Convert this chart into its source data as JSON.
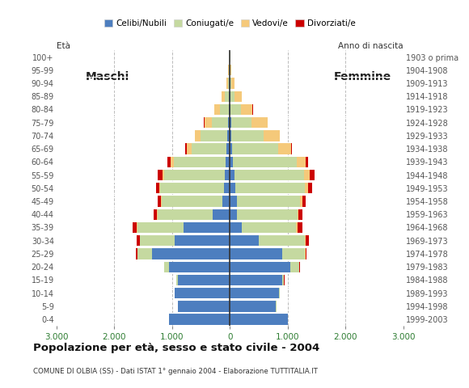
{
  "age_groups": [
    "0-4",
    "5-9",
    "10-14",
    "15-19",
    "20-24",
    "25-29",
    "30-34",
    "35-39",
    "40-44",
    "45-49",
    "50-54",
    "55-59",
    "60-64",
    "65-69",
    "70-74",
    "75-79",
    "80-84",
    "85-89",
    "90-94",
    "95-99",
    "100+"
  ],
  "birth_years": [
    "1999-2003",
    "1994-1998",
    "1989-1993",
    "1984-1988",
    "1979-1983",
    "1974-1978",
    "1969-1973",
    "1964-1968",
    "1959-1963",
    "1954-1958",
    "1949-1953",
    "1944-1948",
    "1939-1943",
    "1934-1938",
    "1929-1933",
    "1924-1928",
    "1919-1923",
    "1914-1918",
    "1909-1913",
    "1904-1908",
    "1903 o prima"
  ],
  "male": {
    "celibe": [
      1050,
      900,
      950,
      900,
      1050,
      1350,
      950,
      800,
      300,
      130,
      100,
      90,
      70,
      60,
      50,
      30,
      20,
      10,
      5,
      2,
      0
    ],
    "coniugato": [
      2,
      2,
      5,
      20,
      80,
      250,
      600,
      800,
      950,
      1050,
      1100,
      1050,
      900,
      600,
      450,
      280,
      150,
      80,
      30,
      15,
      5
    ],
    "vedovo": [
      0,
      0,
      0,
      0,
      0,
      2,
      2,
      5,
      5,
      10,
      20,
      30,
      50,
      80,
      100,
      130,
      100,
      50,
      20,
      8,
      2
    ],
    "divorziato": [
      0,
      0,
      0,
      2,
      5,
      20,
      60,
      80,
      60,
      50,
      60,
      80,
      60,
      30,
      10,
      5,
      3,
      2,
      0,
      0,
      0
    ]
  },
  "female": {
    "nubile": [
      1000,
      800,
      850,
      900,
      1050,
      900,
      500,
      200,
      120,
      120,
      100,
      80,
      60,
      40,
      30,
      20,
      15,
      10,
      5,
      2,
      0
    ],
    "coniugata": [
      2,
      3,
      10,
      40,
      150,
      400,
      800,
      950,
      1050,
      1100,
      1200,
      1200,
      1100,
      800,
      550,
      350,
      180,
      70,
      25,
      10,
      5
    ],
    "vedova": [
      0,
      0,
      0,
      0,
      2,
      5,
      10,
      15,
      20,
      30,
      60,
      100,
      150,
      220,
      280,
      280,
      200,
      120,
      50,
      20,
      5
    ],
    "divorziata": [
      0,
      0,
      0,
      2,
      5,
      20,
      60,
      90,
      70,
      60,
      70,
      80,
      50,
      20,
      10,
      5,
      3,
      2,
      0,
      0,
      0
    ]
  },
  "colors": {
    "celibe": "#4d7ebf",
    "coniugato": "#c5d9a0",
    "vedovo": "#f5c97a",
    "divorziato": "#cc0000"
  },
  "xlim": 3000,
  "title": "Popolazione per età, sesso e stato civile - 2004",
  "subtitle": "COMUNE DI OLBIA (SS) - Dati ISTAT 1° gennaio 2004 - Elaborazione TUTTITALIA.IT",
  "ylabel_left": "Età",
  "ylabel_right": "Anno di nascita",
  "label_maschi": "Maschi",
  "label_femmine": "Femmine",
  "legend_labels": [
    "Celibi/Nubili",
    "Coniugati/e",
    "Vedovi/e",
    "Divorziati/e"
  ],
  "background_color": "#ffffff"
}
